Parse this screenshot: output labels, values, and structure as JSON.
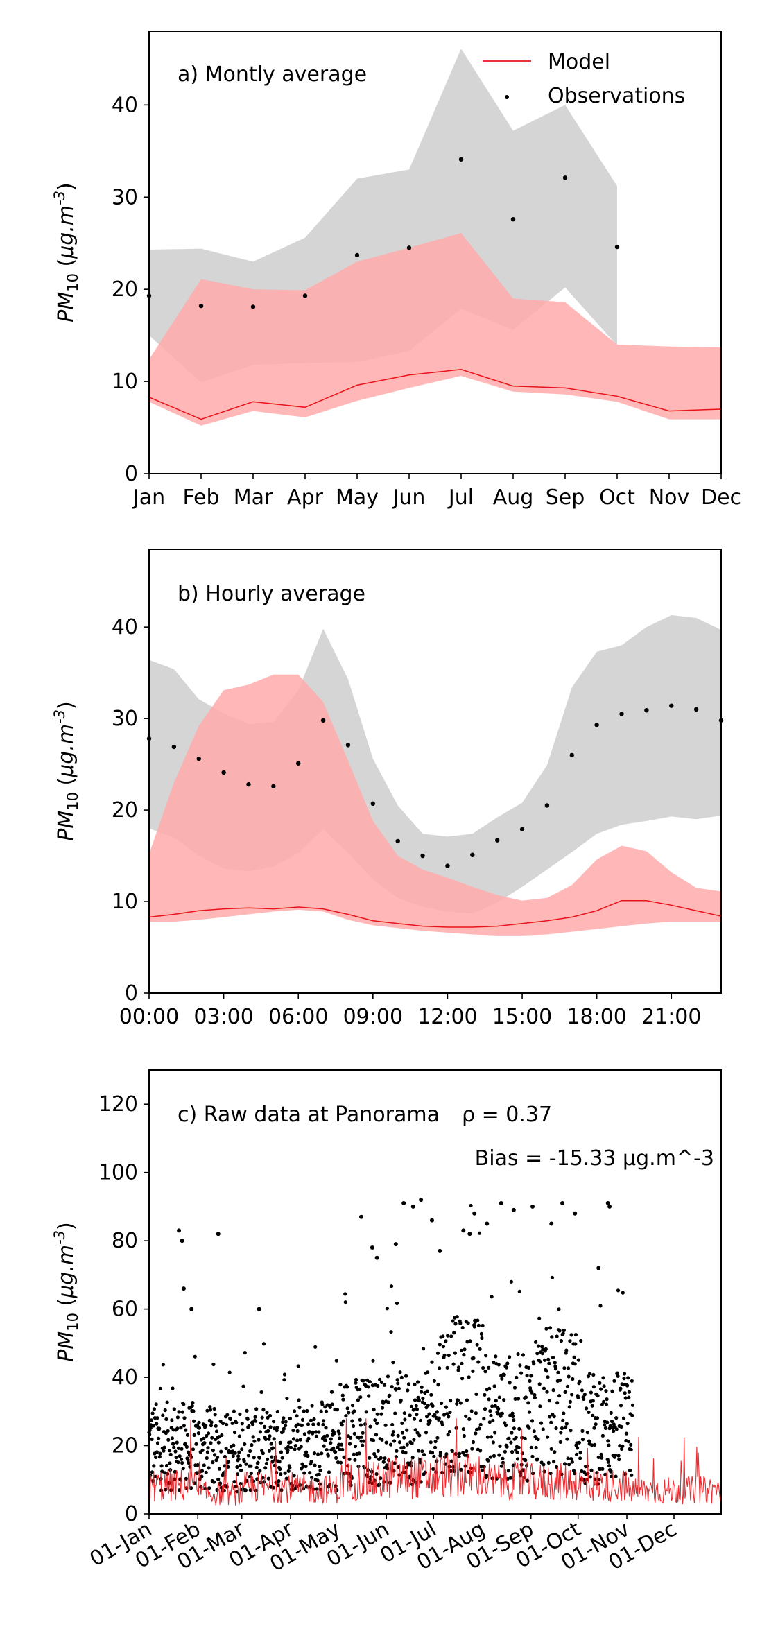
{
  "chart_data": [
    {
      "type": "line",
      "title": "a) Montly average",
      "ylabel": "PM_10 (μg.m^-3)",
      "ylim": [
        0,
        48
      ],
      "yticks": [
        0,
        10,
        20,
        30,
        40
      ],
      "categories": [
        "Jan",
        "Feb",
        "Mar",
        "Apr",
        "May",
        "Jun",
        "Jul",
        "Aug",
        "Sep",
        "Oct",
        "Nov",
        "Dec"
      ],
      "legend": {
        "position": "top-right",
        "entries": [
          "Model",
          "Observations"
        ]
      },
      "colors": {
        "model": "#e8141a",
        "model_band": "#ffaaaa",
        "obs_band": "#bfbfbf",
        "obs": "#000000"
      },
      "series": [
        {
          "name": "Model",
          "values": [
            8.3,
            5.9,
            7.8,
            7.2,
            9.6,
            10.7,
            11.3,
            9.5,
            9.3,
            8.4,
            6.8,
            7.0
          ]
        },
        {
          "name": "Observations",
          "values": [
            19.3,
            18.2,
            18.1,
            19.3,
            23.7,
            24.5,
            34.1,
            27.6,
            32.1,
            24.6,
            null,
            null
          ]
        }
      ],
      "bands": {
        "model_lower": [
          7.8,
          5.2,
          6.8,
          6.1,
          7.9,
          9.3,
          10.6,
          8.9,
          8.6,
          7.8,
          5.9,
          5.9
        ],
        "model_upper": [
          12.4,
          21.1,
          20.0,
          19.9,
          23.0,
          24.5,
          26.1,
          19.0,
          18.6,
          14.0,
          13.8,
          13.7
        ],
        "obs_lower": [
          15.0,
          9.9,
          11.8,
          12.0,
          12.1,
          13.3,
          17.9,
          15.6,
          20.2,
          13.9,
          null,
          null
        ],
        "obs_upper": [
          24.3,
          24.4,
          23.0,
          25.6,
          32.0,
          33.0,
          46.1,
          37.2,
          40.0,
          31.2,
          null,
          null
        ]
      }
    },
    {
      "type": "line",
      "title": "b) Hourly average",
      "ylabel": "PM_10 (μg.m^-3)",
      "ylim": [
        0,
        48.5
      ],
      "yticks": [
        0,
        10,
        20,
        30,
        40
      ],
      "xlim": [
        0,
        23
      ],
      "xticks": [
        0,
        3,
        6,
        9,
        12,
        15,
        18,
        21
      ],
      "xticklabels": [
        "00:00",
        "03:00",
        "06:00",
        "09:00",
        "12:00",
        "15:00",
        "18:00",
        "21:00"
      ],
      "series": [
        {
          "name": "Model",
          "x": [
            0,
            1,
            2,
            3,
            4,
            5,
            6,
            7,
            8,
            9,
            10,
            11,
            12,
            13,
            14,
            15,
            16,
            17,
            18,
            19,
            20,
            21,
            22,
            23
          ],
          "values": [
            8.3,
            8.6,
            9.0,
            9.2,
            9.3,
            9.2,
            9.4,
            9.2,
            8.6,
            7.9,
            7.6,
            7.3,
            7.2,
            7.2,
            7.3,
            7.6,
            7.9,
            8.3,
            9.0,
            10.1,
            10.1,
            9.6,
            9.0,
            8.4
          ]
        },
        {
          "name": "Observations",
          "x": [
            0,
            1,
            2,
            3,
            4,
            5,
            6,
            7,
            8,
            9,
            10,
            11,
            12,
            13,
            14,
            15,
            16,
            17,
            18,
            19,
            20,
            21,
            22,
            23
          ],
          "values": [
            27.8,
            26.9,
            25.6,
            24.1,
            22.8,
            22.6,
            25.1,
            29.8,
            27.1,
            20.7,
            16.6,
            15.0,
            13.9,
            15.1,
            16.7,
            17.9,
            20.5,
            26.0,
            29.3,
            30.5,
            30.9,
            31.4,
            31.0,
            29.8
          ]
        }
      ],
      "bands": {
        "model_lower": [
          7.8,
          7.8,
          8.0,
          8.3,
          8.6,
          8.9,
          9.1,
          8.9,
          8.0,
          7.4,
          7.1,
          6.8,
          6.6,
          6.4,
          6.3,
          6.3,
          6.4,
          6.7,
          7.0,
          7.3,
          7.6,
          7.8,
          7.8,
          7.8
        ],
        "model_upper": [
          15.2,
          23.0,
          29.2,
          33.1,
          33.7,
          34.8,
          34.8,
          31.8,
          25.4,
          18.8,
          15.0,
          13.5,
          12.6,
          11.6,
          10.7,
          10.1,
          10.4,
          11.8,
          14.6,
          16.1,
          15.5,
          13.2,
          11.5,
          11.1
        ],
        "obs_lower": [
          18.0,
          17.0,
          15.0,
          13.6,
          13.3,
          13.8,
          15.3,
          17.9,
          15.3,
          12.4,
          10.4,
          9.4,
          8.9,
          8.7,
          9.9,
          11.6,
          13.5,
          15.4,
          17.4,
          18.4,
          18.8,
          19.3,
          19.0,
          19.4
        ],
        "obs_upper": [
          36.4,
          35.4,
          32.1,
          30.6,
          29.4,
          29.6,
          33.1,
          39.8,
          34.3,
          25.6,
          20.5,
          17.4,
          17.1,
          17.4,
          19.2,
          20.8,
          24.9,
          33.4,
          37.3,
          38.0,
          40.0,
          41.3,
          41.0,
          39.7
        ]
      }
    },
    {
      "type": "scatter",
      "title": "c) Raw data at Panorama",
      "annotations": [
        "ρ = 0.37",
        "Bias = -15.33 μg.m^-3"
      ],
      "ylabel": "PM_10 (μg.m^-3)",
      "ylim": [
        0,
        130
      ],
      "yticks": [
        0,
        20,
        40,
        60,
        80,
        100,
        120
      ],
      "xlim": [
        "01-Jan",
        "31-Dec"
      ],
      "xticklabels": [
        "01-Jan",
        "01-Feb",
        "01-Mar",
        "01-Apr",
        "01-May",
        "01-Jun",
        "01-Jul",
        "01-Aug",
        "01-Sep",
        "01-Oct",
        "01-Nov",
        "01-Dec"
      ],
      "series": [
        {
          "name": "Observations",
          "note_range": "dense hourly points, roughly 2–92, through early Nov",
          "x": [
            "20-Jan",
            "22-Jan",
            "23-Jan",
            "28-Jan",
            "14-Feb",
            "12-Mar",
            "16-May",
            "23-May",
            "26-May",
            "07-Jun",
            "12-Jun",
            "18-Jun",
            "23-Jun",
            "30-Jun",
            "05-Jul",
            "20-Jul",
            "24-Jul",
            "27-Jul",
            "04-Aug",
            "13-Aug",
            "21-Aug",
            "02-Sep",
            "14-Sep",
            "21-Sep",
            "29-Sep",
            "14-Oct",
            "20-Oct",
            "21-Oct"
          ],
          "values": [
            83,
            80,
            66,
            60,
            82,
            60,
            87,
            78,
            75,
            79,
            91,
            90,
            92,
            86,
            77,
            83,
            82,
            88,
            85,
            91,
            89,
            90,
            85,
            91,
            88,
            72,
            91,
            90
          ]
        },
        {
          "name": "Model",
          "note_range": "hourly line, mostly 2–25, full year"
        }
      ]
    }
  ]
}
